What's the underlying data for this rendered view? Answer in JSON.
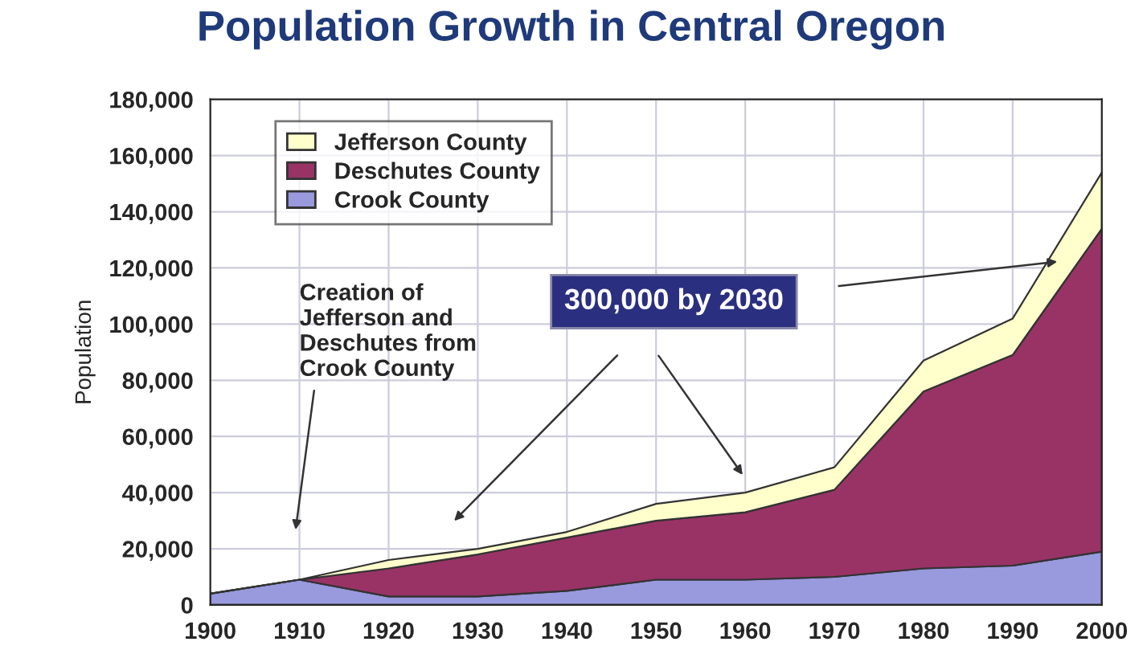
{
  "chart_data": {
    "type": "area",
    "stacked": true,
    "title": "Population Growth in Central Oregon",
    "ylabel": "Population",
    "x": [
      1900,
      1910,
      1920,
      1930,
      1940,
      1950,
      1960,
      1970,
      1980,
      1990,
      2000
    ],
    "series": [
      {
        "name": "Crook County",
        "color": "#9999dd",
        "values": [
          4000,
          9000,
          3000,
          3000,
          5000,
          9000,
          9000,
          10000,
          13000,
          14000,
          19000
        ]
      },
      {
        "name": "Deschutes County",
        "color": "#993366",
        "values": [
          0,
          0,
          10000,
          15000,
          19000,
          21000,
          24000,
          31000,
          63000,
          75000,
          115000
        ]
      },
      {
        "name": "Jefferson County",
        "color": "#ffffcc",
        "values": [
          0,
          0,
          3000,
          2000,
          2000,
          6000,
          7000,
          8000,
          11000,
          13000,
          20000
        ]
      }
    ],
    "xlim": [
      1900,
      2000
    ],
    "xticks": [
      1900,
      1910,
      1920,
      1930,
      1940,
      1950,
      1960,
      1970,
      1980,
      1990,
      2000
    ],
    "ylim": [
      0,
      180000
    ],
    "yticks": [
      {
        "value": 0,
        "label": "0"
      },
      {
        "value": 20000,
        "label": "20,000"
      },
      {
        "value": 40000,
        "label": "40,000"
      },
      {
        "value": 60000,
        "label": "60,000"
      },
      {
        "value": 80000,
        "label": "80,000"
      },
      {
        "value": 100000,
        "label": "100,000"
      },
      {
        "value": 120000,
        "label": "120,000"
      },
      {
        "value": 140000,
        "label": "140,000"
      },
      {
        "value": 160000,
        "label": "160,000"
      },
      {
        "value": 180000,
        "label": "180,000"
      }
    ],
    "grid": true,
    "legend": "top left",
    "annotations": [
      "Creation of\nJefferson and\nDeschutes from\nCrook County",
      "300,000 by 2030"
    ]
  }
}
